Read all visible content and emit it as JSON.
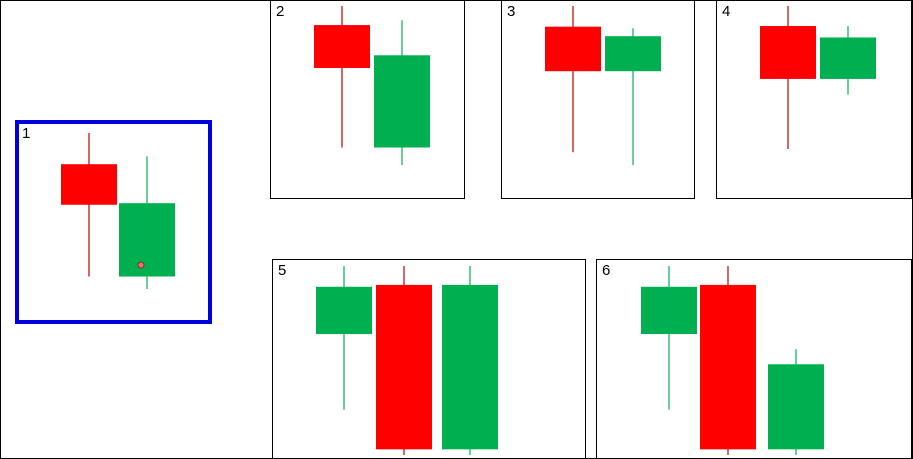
{
  "colors": {
    "bullish": "#00b050",
    "bearish": "#ff0000",
    "bullish_wick": "#00b050",
    "bearish_wick": "#c00000",
    "selection_border": "#0000dd",
    "cursor_dot": "#ff6a6a"
  },
  "panels": [
    {
      "number": "1",
      "selected": true,
      "candles": [
        {
          "direction": "bearish",
          "high": 100,
          "open": 80,
          "close": 54,
          "low": 8
        },
        {
          "direction": "bullish",
          "high": 85,
          "open": 8,
          "close": 55,
          "low": 0
        }
      ]
    },
    {
      "number": "2",
      "selected": false,
      "candles": [
        {
          "direction": "bearish",
          "high": 100,
          "open": 88,
          "close": 61,
          "low": 11
        },
        {
          "direction": "bullish",
          "high": 91,
          "open": 11,
          "close": 69,
          "low": 0
        }
      ]
    },
    {
      "number": "3",
      "selected": false,
      "candles": [
        {
          "direction": "bearish",
          "high": 100,
          "open": 87,
          "close": 59,
          "low": 8
        },
        {
          "direction": "bullish",
          "high": 86,
          "open": 59,
          "close": 81,
          "low": 0
        }
      ]
    },
    {
      "number": "4",
      "selected": false,
      "candles": [
        {
          "direction": "bearish",
          "high": 100,
          "open": 86,
          "close": 49,
          "low": 0
        },
        {
          "direction": "bullish",
          "high": 86,
          "open": 49,
          "close": 78,
          "low": 38
        }
      ]
    },
    {
      "number": "5",
      "selected": false,
      "candles": [
        {
          "direction": "bullish",
          "high": 100,
          "open": 64,
          "close": 89,
          "low": 24
        },
        {
          "direction": "bearish",
          "high": 100,
          "open": 90,
          "close": 3,
          "low": 0
        },
        {
          "direction": "bullish",
          "high": 100,
          "open": 3,
          "close": 90,
          "low": 0
        }
      ]
    },
    {
      "number": "6",
      "selected": false,
      "candles": [
        {
          "direction": "bullish",
          "high": 100,
          "open": 64,
          "close": 89,
          "low": 24
        },
        {
          "direction": "bearish",
          "high": 100,
          "open": 90,
          "close": 3,
          "low": 0
        },
        {
          "direction": "bullish",
          "high": 56,
          "open": 3,
          "close": 48,
          "low": 0
        }
      ]
    }
  ]
}
